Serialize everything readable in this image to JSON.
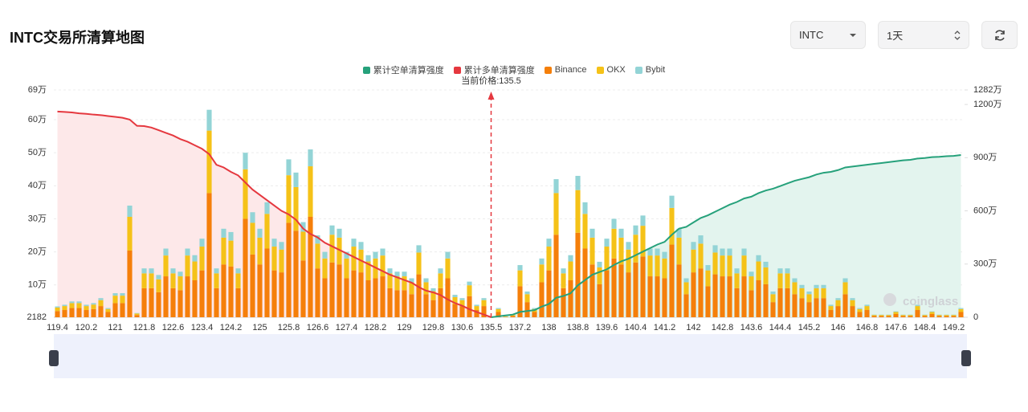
{
  "header": {
    "title": "INTC交易所清算地图",
    "symbol_select": "INTC",
    "period_select": "1天"
  },
  "chart_data": {
    "type": "bar",
    "current_price_label": "当前价格:135.5",
    "current_price": 135.5,
    "watermark": "coinglass",
    "grid": true,
    "ylim": [
      2182,
      690000
    ],
    "yticks": [
      2182,
      {
        "value": 100000,
        "label": "10万"
      },
      {
        "value": 200000,
        "label": "20万"
      },
      {
        "value": 300000,
        "label": "30万"
      },
      {
        "value": 400000,
        "label": "40万"
      },
      {
        "value": 500000,
        "label": "50万"
      },
      {
        "value": 600000,
        "label": "60万"
      },
      {
        "value": 690000,
        "label": "69万"
      }
    ],
    "y2lim": [
      0,
      12820000
    ],
    "y2ticks": [
      0,
      {
        "value": 3000000,
        "label": "300万"
      },
      {
        "value": 6000000,
        "label": "600万"
      },
      {
        "value": 9000000,
        "label": "900万"
      },
      {
        "value": 12000000,
        "label": "1200万"
      },
      {
        "value": 12820000,
        "label": "1282万"
      }
    ],
    "categories": [
      "119.4",
      null,
      null,
      null,
      "120.2",
      null,
      null,
      null,
      "121",
      null,
      null,
      null,
      "121.8",
      null,
      null,
      null,
      "122.6",
      null,
      null,
      null,
      "123.4",
      null,
      null,
      null,
      "124.2",
      null,
      null,
      null,
      "125",
      null,
      null,
      null,
      "125.8",
      null,
      null,
      null,
      "126.6",
      null,
      null,
      null,
      "127.4",
      null,
      null,
      null,
      "128.2",
      null,
      null,
      null,
      "129",
      null,
      null,
      null,
      "129.8",
      null,
      null,
      null,
      "130.6",
      null,
      null,
      null,
      "135.5",
      null,
      null,
      null,
      "137.2",
      null,
      null,
      null,
      "138",
      null,
      null,
      null,
      "138.8",
      null,
      null,
      null,
      "139.6",
      null,
      null,
      null,
      "140.4",
      null,
      null,
      null,
      "141.2",
      null,
      null,
      null,
      "142",
      null,
      null,
      null,
      "142.8",
      null,
      null,
      null,
      "143.6",
      null,
      null,
      null,
      "144.4",
      null,
      null,
      null,
      "145.2",
      null,
      null,
      null,
      "146",
      null,
      null,
      null,
      "146.8",
      null,
      null,
      null,
      "147.6",
      null,
      null,
      null,
      "148.4",
      null,
      null,
      null,
      "149.2",
      null
    ],
    "series": [
      {
        "name": "累计空单清算强度",
        "type": "line",
        "axis": "y2",
        "color": "#26a17b",
        "area_color": "#e3f4ee",
        "values": [
          null,
          null,
          null,
          null,
          null,
          null,
          null,
          null,
          null,
          null,
          null,
          null,
          null,
          null,
          null,
          null,
          null,
          null,
          null,
          null,
          null,
          null,
          null,
          null,
          null,
          null,
          null,
          null,
          null,
          null,
          null,
          null,
          null,
          null,
          null,
          null,
          null,
          null,
          null,
          null,
          null,
          null,
          null,
          null,
          null,
          null,
          null,
          null,
          null,
          null,
          null,
          null,
          null,
          null,
          null,
          null,
          null,
          null,
          null,
          null,
          0,
          50000,
          100000,
          150000,
          300000,
          350000,
          400000,
          600000,
          750000,
          1100000,
          1200000,
          1350000,
          1800000,
          2100000,
          2400000,
          2550000,
          2700000,
          2950000,
          3150000,
          3300000,
          3500000,
          3700000,
          3900000,
          4100000,
          4250000,
          4650000,
          5000000,
          5100000,
          5350000,
          5600000,
          5750000,
          5950000,
          6150000,
          6350000,
          6500000,
          6700000,
          6800000,
          7000000,
          7150000,
          7250000,
          7400000,
          7550000,
          7700000,
          7800000,
          7900000,
          8050000,
          8150000,
          8200000,
          8300000,
          8450000,
          8500000,
          8550000,
          8600000,
          8650000,
          8700000,
          8750000,
          8800000,
          8850000,
          8880000,
          8950000,
          8980000,
          9030000,
          9050000,
          9080000,
          9100000,
          9150000
        ]
      },
      {
        "name": "累计多单清算强度",
        "type": "line",
        "axis": "y2",
        "color": "#e5383f",
        "area_color": "#fde8e9",
        "values": [
          11600000,
          11580000,
          11550000,
          11500000,
          11470000,
          11430000,
          11400000,
          11350000,
          11300000,
          11250000,
          11150000,
          10800000,
          10780000,
          10700000,
          10550000,
          10400000,
          10250000,
          10050000,
          9900000,
          9700000,
          9500000,
          9200000,
          8600000,
          8450000,
          8200000,
          8000000,
          7600000,
          7200000,
          6900000,
          6600000,
          6300000,
          6000000,
          5800000,
          5500000,
          5000000,
          4700000,
          4500000,
          4200000,
          4000000,
          3800000,
          3600000,
          3400000,
          3200000,
          3000000,
          2800000,
          2600000,
          2400000,
          2250000,
          2100000,
          1950000,
          1700000,
          1500000,
          1400000,
          1250000,
          1000000,
          800000,
          650000,
          450000,
          300000,
          150000,
          0,
          null,
          null,
          null,
          null,
          null,
          null,
          null,
          null,
          null,
          null,
          null,
          null,
          null,
          null,
          null,
          null,
          null,
          null,
          null,
          null,
          null,
          null,
          null,
          null,
          null,
          null,
          null,
          null,
          null,
          null,
          null,
          null,
          null,
          null,
          null,
          null,
          null,
          null,
          null,
          null,
          null,
          null,
          null,
          null,
          null,
          null,
          null,
          null,
          null,
          null,
          null,
          null,
          null,
          null,
          null,
          null,
          null,
          null,
          null,
          null,
          null,
          null,
          null,
          null,
          null
        ]
      },
      {
        "name": "Binance",
        "type": "bar",
        "color": "#f57f0a",
        "values": [
          21000,
          24000,
          30000,
          30000,
          24000,
          27000,
          36000,
          18000,
          45000,
          45000,
          204000,
          9000,
          90000,
          90000,
          78000,
          126000,
          90000,
          84000,
          126000,
          114000,
          144000,
          378000,
          90000,
          162000,
          156000,
          90000,
          300000,
          192000,
          162000,
          210000,
          144000,
          138000,
          288000,
          264000,
          174000,
          306000,
          150000,
          120000,
          168000,
          162000,
          120000,
          144000,
          138000,
          114000,
          120000,
          126000,
          90000,
          84000,
          84000,
          72000,
          132000,
          72000,
          54000,
          90000,
          120000,
          42000,
          36000,
          66000,
          24000,
          36000,
          0,
          18000,
          3000,
          6000,
          96000,
          48000,
          18000,
          108000,
          144000,
          252000,
          90000,
          114000,
          258000,
          210000,
          162000,
          102000,
          144000,
          180000,
          162000,
          138000,
          168000,
          186000,
          126000,
          126000,
          120000,
          222000,
          162000,
          72000,
          138000,
          150000,
          96000,
          132000,
          126000,
          126000,
          90000,
          126000,
          84000,
          114000,
          102000,
          48000,
          90000,
          90000,
          72000,
          60000,
          48000,
          60000,
          60000,
          24000,
          36000,
          72000,
          36000,
          18000,
          24000,
          6000,
          6000,
          6000,
          12000,
          6000,
          6000,
          24000,
          6000,
          12000,
          6000,
          6000,
          6000,
          18000
        ]
      },
      {
        "name": "OKX",
        "type": "bar",
        "color": "#f5c218",
        "values": [
          10500,
          12000,
          15000,
          15000,
          12000,
          13500,
          18000,
          9000,
          22500,
          22500,
          102000,
          4500,
          45000,
          45000,
          39000,
          63000,
          45000,
          42000,
          63000,
          57000,
          72000,
          189000,
          45000,
          81000,
          78000,
          45000,
          150000,
          96000,
          81000,
          105000,
          72000,
          69000,
          144000,
          132000,
          87000,
          153000,
          75000,
          60000,
          84000,
          81000,
          60000,
          72000,
          69000,
          57000,
          60000,
          63000,
          45000,
          42000,
          42000,
          36000,
          66000,
          36000,
          27000,
          45000,
          60000,
          21000,
          18000,
          33000,
          12000,
          18000,
          0,
          9000,
          1500,
          3000,
          48000,
          24000,
          9000,
          54000,
          72000,
          126000,
          45000,
          57000,
          129000,
          105000,
          81000,
          51000,
          72000,
          90000,
          81000,
          69000,
          84000,
          93000,
          63000,
          63000,
          60000,
          111000,
          81000,
          36000,
          69000,
          75000,
          48000,
          66000,
          63000,
          63000,
          45000,
          63000,
          42000,
          57000,
          51000,
          24000,
          45000,
          45000,
          36000,
          30000,
          24000,
          30000,
          30000,
          12000,
          18000,
          36000,
          18000,
          9000,
          12000,
          3000,
          3000,
          3000,
          6000,
          3000,
          3000,
          12000,
          3000,
          6000,
          3000,
          3000,
          3000,
          9000
        ]
      },
      {
        "name": "Bybit",
        "type": "bar",
        "color": "#93d4d6",
        "values": [
          3500,
          4000,
          5000,
          5000,
          4000,
          4500,
          6000,
          3000,
          7500,
          7500,
          34000,
          1500,
          15000,
          15000,
          13000,
          21000,
          15000,
          14000,
          21000,
          19000,
          24000,
          63000,
          15000,
          27000,
          26000,
          15000,
          50000,
          32000,
          27000,
          35000,
          24000,
          23000,
          48000,
          44000,
          29000,
          51000,
          25000,
          20000,
          28000,
          27000,
          20000,
          24000,
          23000,
          19000,
          20000,
          21000,
          15000,
          14000,
          14000,
          12000,
          22000,
          12000,
          9000,
          15000,
          20000,
          7000,
          6000,
          11000,
          4000,
          6000,
          0,
          3000,
          500,
          1000,
          16000,
          8000,
          3000,
          18000,
          24000,
          42000,
          15000,
          19000,
          43000,
          35000,
          27000,
          17000,
          24000,
          30000,
          27000,
          23000,
          28000,
          31000,
          21000,
          21000,
          20000,
          37000,
          27000,
          12000,
          23000,
          25000,
          16000,
          22000,
          21000,
          21000,
          15000,
          21000,
          14000,
          19000,
          17000,
          8000,
          15000,
          15000,
          12000,
          10000,
          8000,
          10000,
          10000,
          4000,
          6000,
          12000,
          6000,
          3000,
          4000,
          1000,
          1000,
          1000,
          2000,
          1000,
          1000,
          4000,
          1000,
          2000,
          1000,
          1000,
          1000,
          3000
        ]
      }
    ]
  }
}
